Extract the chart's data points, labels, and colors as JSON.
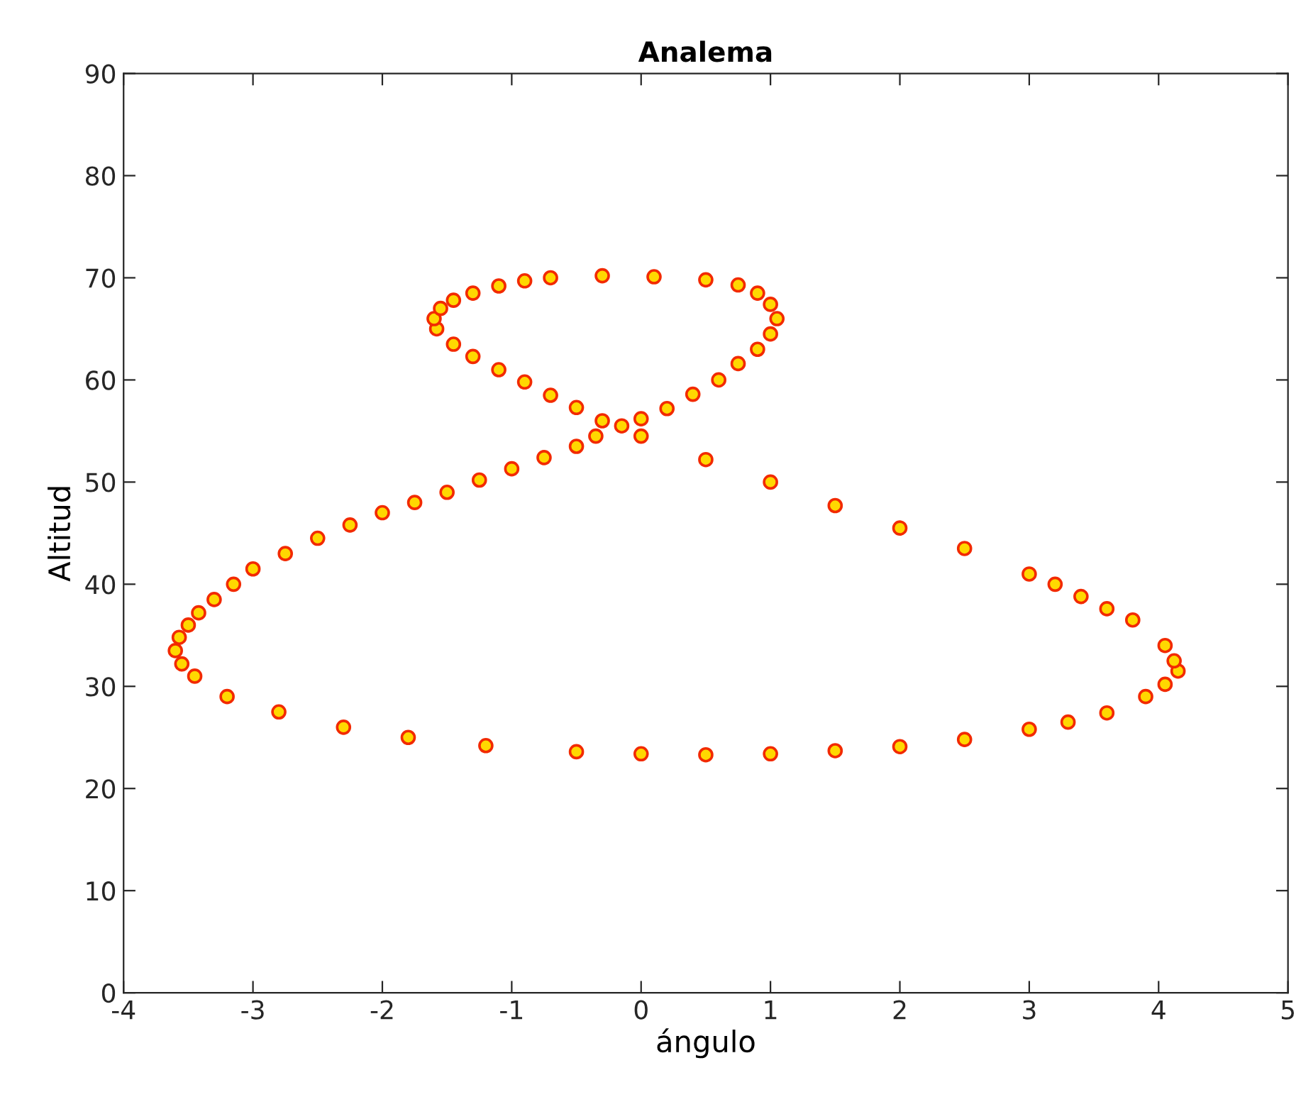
{
  "chart_data": {
    "type": "scatter",
    "title": "Analema",
    "xlabel": "ángulo",
    "ylabel": "Altitud",
    "xlim": [
      -4,
      5
    ],
    "ylim": [
      0,
      90
    ],
    "xticks": [
      -4,
      -3,
      -2,
      -1,
      0,
      1,
      2,
      3,
      4,
      5
    ],
    "yticks": [
      0,
      10,
      20,
      30,
      40,
      50,
      60,
      70,
      80,
      90
    ],
    "grid": false,
    "legend": false,
    "marker": "circle",
    "series": [
      {
        "color": "#f22a00",
        "x": [
          -0.3,
          0.1,
          0.5,
          0.75,
          0.9,
          1.0,
          1.05,
          1.0,
          0.9,
          0.75,
          0.6,
          0.4,
          0.2,
          0.0,
          -0.15,
          -0.35,
          -0.5,
          -0.75,
          -1.0,
          -1.25,
          -1.5,
          -1.75,
          -2.0,
          -2.25,
          -2.5,
          -2.75,
          -3.0,
          -3.15,
          -3.3,
          -3.42,
          -3.5,
          -3.57,
          -3.6,
          -3.55,
          -3.45,
          -3.2,
          -2.8,
          -2.3,
          -1.8,
          -1.2,
          -0.5,
          0.0,
          0.5,
          1.0,
          1.5,
          2.0,
          2.5,
          3.0,
          3.3,
          3.6,
          3.9,
          4.05,
          4.15,
          4.12,
          4.05,
          3.8,
          3.6,
          3.4,
          3.2,
          3.0,
          2.5,
          2.0,
          1.5,
          1.0,
          0.5,
          0.0,
          -0.3,
          -0.5,
          -0.7,
          -0.9,
          -1.1,
          -1.3,
          -1.45,
          -1.58,
          -1.6,
          -1.55,
          -1.45,
          -1.3,
          -1.1,
          -0.9,
          -0.7
        ],
        "values": [
          70.2,
          70.1,
          69.8,
          69.3,
          68.5,
          67.4,
          66.0,
          64.5,
          63.0,
          61.6,
          60.0,
          58.6,
          57.2,
          56.2,
          55.5,
          54.5,
          53.5,
          52.4,
          51.3,
          50.2,
          49.0,
          48.0,
          47.0,
          45.8,
          44.5,
          43.0,
          41.5,
          40.0,
          38.5,
          37.2,
          36.0,
          34.8,
          33.5,
          32.2,
          31.0,
          29.0,
          27.5,
          26.0,
          25.0,
          24.2,
          23.6,
          23.4,
          23.3,
          23.4,
          23.7,
          24.1,
          24.8,
          25.8,
          26.5,
          27.4,
          29.0,
          30.2,
          31.5,
          32.5,
          34.0,
          36.5,
          37.6,
          38.8,
          40.0,
          41.0,
          43.5,
          45.5,
          47.7,
          50.0,
          52.2,
          54.5,
          56.0,
          57.3,
          58.5,
          59.8,
          61.0,
          62.3,
          63.5,
          65.0,
          66.0,
          67.0,
          67.8,
          68.5,
          69.2,
          69.7,
          70.0
        ]
      }
    ]
  }
}
